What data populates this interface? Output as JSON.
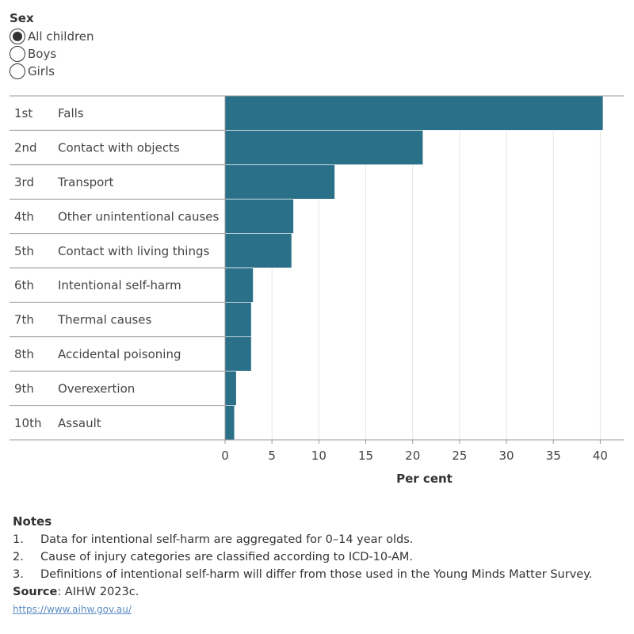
{
  "filter": {
    "title": "Sex",
    "options": [
      {
        "label": "All children",
        "selected": true
      },
      {
        "label": "Boys",
        "selected": false
      },
      {
        "label": "Girls",
        "selected": false
      }
    ]
  },
  "colors": {
    "bar": "#2a7089",
    "gridline": "#e6e6e6",
    "rule": "#999999"
  },
  "chart_data": {
    "type": "bar",
    "orientation": "horizontal",
    "ranks": [
      "1st",
      "2nd",
      "3rd",
      "4th",
      "5th",
      "6th",
      "7th",
      "8th",
      "9th",
      "10th"
    ],
    "categories": [
      "Falls",
      "Contact with objects",
      "Transport",
      "Other unintentional causes",
      "Contact with living things",
      "Intentional self-harm",
      "Thermal causes",
      "Accidental poisoning",
      "Overexertion",
      "Assault"
    ],
    "values": [
      40.3,
      21.1,
      11.7,
      7.3,
      7.1,
      3.0,
      2.8,
      2.8,
      1.2,
      1.0
    ],
    "xlabel": "Per cent",
    "xticks": [
      0,
      5,
      10,
      15,
      20,
      25,
      30,
      35,
      40
    ],
    "xlim": [
      0,
      42.5
    ],
    "grid": true
  },
  "notes": {
    "title": "Notes",
    "items": [
      {
        "num": "1.",
        "text": "Data for intentional self-harm are aggregated for 0–14 year olds."
      },
      {
        "num": "2.",
        "text": "Cause of injury categories are classified according to ICD-10-AM."
      },
      {
        "num": "3.",
        "text": "Definitions of intentional self-harm will differ from those used in the Young Minds Matter Survey."
      }
    ],
    "source_label": "Source",
    "source_text": ": AIHW 2023c.",
    "link": "https://www.aihw.gov.au/"
  }
}
